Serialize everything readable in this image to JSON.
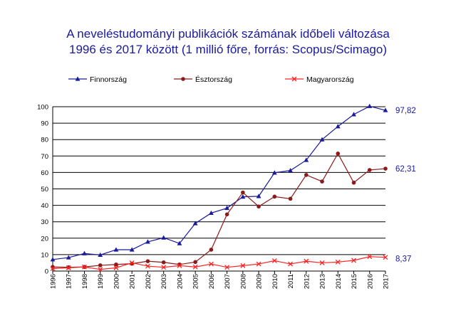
{
  "title": {
    "line1": "A neveléstudományi publikációk számának időbeli változása",
    "line2": "1996 és 2017 között (1 millió főre, forrás: Scopus/Scimago)"
  },
  "chart_data": {
    "type": "line",
    "x": [
      1996,
      1997,
      1998,
      1999,
      2000,
      2001,
      2002,
      2003,
      2004,
      2005,
      2006,
      2007,
      2008,
      2009,
      2010,
      2011,
      2012,
      2013,
      2014,
      2015,
      2016,
      2017
    ],
    "ylim": [
      0,
      100
    ],
    "yticks": [
      0,
      10,
      20,
      30,
      40,
      50,
      60,
      70,
      80,
      90,
      100
    ],
    "grid": "horizontal",
    "legend_position": "top",
    "series": [
      {
        "name": "Finnország",
        "color": "#1a1a9e",
        "marker": "triangle",
        "end_label": "97,82",
        "values": [
          7.0,
          8.2,
          10.7,
          9.8,
          13.0,
          13.0,
          17.8,
          20.3,
          16.8,
          29.0,
          35.3,
          38.3,
          45.2,
          45.5,
          59.8,
          61.2,
          67.5,
          80.0,
          88.0,
          95.3,
          100.3,
          97.82
        ]
      },
      {
        "name": "Észtország",
        "color": "#8b1a1a",
        "marker": "circle",
        "end_label": "62,31",
        "values": [
          2.5,
          2.3,
          2.5,
          3.5,
          4.0,
          4.5,
          6.0,
          5.3,
          4.0,
          5.5,
          13.0,
          34.5,
          47.8,
          39.3,
          45.3,
          44.0,
          58.5,
          54.5,
          71.5,
          53.8,
          61.5,
          62.31
        ]
      },
      {
        "name": "Magyarország",
        "color": "#ff2020",
        "marker": "x",
        "end_label": "8,37",
        "values": [
          1.5,
          2.0,
          2.5,
          1.0,
          2.0,
          5.0,
          3.0,
          2.3,
          3.3,
          2.5,
          4.3,
          2.3,
          3.3,
          4.3,
          6.3,
          4.3,
          6.0,
          5.0,
          5.5,
          6.5,
          8.8,
          8.37
        ]
      }
    ]
  }
}
